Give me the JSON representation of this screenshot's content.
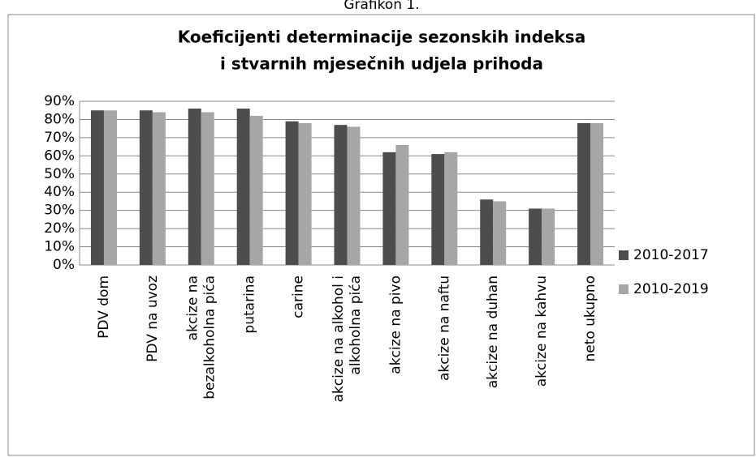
{
  "chart_data": {
    "type": "bar",
    "caption": "Grafikon 1.",
    "title": "Koeficijenti determinacije sezonskih indeksa i stvarnih mjesečnih udjela prihoda",
    "categories": [
      "PDV dom",
      "PDV na uvoz",
      "akcize na bezalkoholna pića",
      "putarina",
      "carine",
      "akcize na alkohol i alkoholna pića",
      "akcize na pivo",
      "akcize na naftu",
      "akcize na duhan",
      "akcize na kahvu",
      "neto ukupno"
    ],
    "series": [
      {
        "name": "2010-2017",
        "color": "#4d4d4d",
        "values": [
          85,
          85,
          86,
          86,
          79,
          77,
          62,
          61,
          36,
          31,
          78
        ]
      },
      {
        "name": "2010-2019",
        "color": "#a6a6a6",
        "values": [
          85,
          84,
          84,
          82,
          78,
          76,
          66,
          62,
          35,
          31,
          78
        ]
      }
    ],
    "ylim": [
      0,
      90
    ],
    "yticks": [
      {
        "value": 0,
        "label": "0%"
      },
      {
        "value": 10,
        "label": "10%"
      },
      {
        "value": 20,
        "label": "20%"
      },
      {
        "value": 30,
        "label": "30%"
      },
      {
        "value": 40,
        "label": "40%"
      },
      {
        "value": 50,
        "label": "50%"
      },
      {
        "value": 60,
        "label": "60%"
      },
      {
        "value": 70,
        "label": "70%"
      },
      {
        "value": 80,
        "label": "80%"
      },
      {
        "value": 90,
        "label": "90%"
      }
    ],
    "grid": true,
    "legend": "right"
  }
}
